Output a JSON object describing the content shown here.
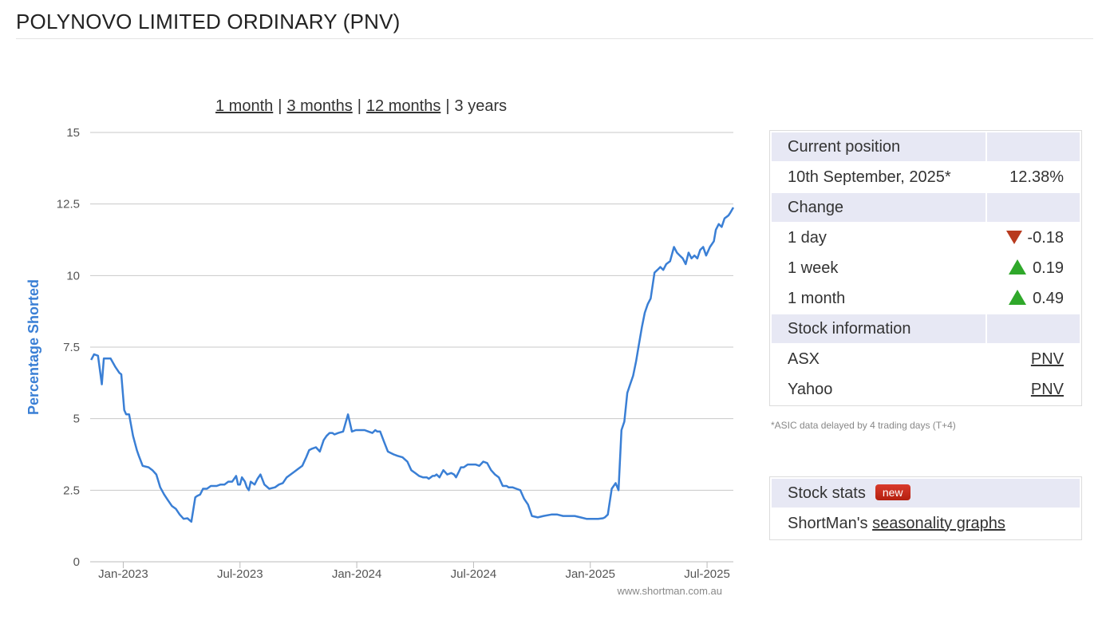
{
  "page": {
    "title": "POLYNOVO LIMITED ORDINARY (PNV)"
  },
  "range_links": [
    {
      "label": "1 month",
      "link": true
    },
    {
      "label": "3 months",
      "link": true
    },
    {
      "label": "12 months",
      "link": true
    },
    {
      "label": "3 years",
      "link": false
    }
  ],
  "colors": {
    "line": "#3a7fd5",
    "grid": "#c8c8c8",
    "axis_label": "#3a7fd5",
    "panel_head": "#e7e8f4",
    "down": "#b83a1e",
    "up": "#2fa82a",
    "badge": "#c62b1e"
  },
  "chart_data": {
    "type": "line",
    "title": "",
    "ylabel": "Percentage Shorted",
    "xlabel": "",
    "ylim": [
      0,
      15
    ],
    "yticks": [
      0,
      2.5,
      5,
      7.5,
      10,
      12.5,
      15
    ],
    "ytick_labels": [
      "0",
      "2.5",
      "5",
      "7.5",
      "10",
      "12.5",
      "15"
    ],
    "xlim": [
      -0.7,
      32.35
    ],
    "xticks": [
      {
        "t": 1,
        "label": "Jan-2023"
      },
      {
        "t": 7,
        "label": "Jul-2023"
      },
      {
        "t": 13,
        "label": "Jan-2024"
      },
      {
        "t": 19,
        "label": "Jul-2024"
      },
      {
        "t": 25,
        "label": "Jan-2025"
      },
      {
        "t": 31,
        "label": "Jul-2025"
      }
    ],
    "credit": "www.shortman.com.au",
    "series": [
      {
        "name": "Percentage Shorted",
        "x": [
          -0.65,
          -0.5,
          -0.3,
          -0.1,
          0.0,
          0.1,
          0.35,
          0.6,
          0.8,
          0.9,
          1.05,
          1.15,
          1.3,
          1.5,
          1.7,
          1.8,
          2.0,
          2.3,
          2.5,
          2.7,
          2.9,
          3.1,
          3.3,
          3.5,
          3.7,
          3.9,
          4.1,
          4.3,
          4.5,
          4.7,
          4.8,
          4.95,
          5.1,
          5.3,
          5.5,
          5.8,
          6.0,
          6.2,
          6.4,
          6.6,
          6.8,
          6.9,
          7.0,
          7.1,
          7.25,
          7.35,
          7.45,
          7.55,
          7.75,
          7.9,
          8.05,
          8.25,
          8.5,
          8.8,
          9.0,
          9.2,
          9.4,
          9.6,
          9.8,
          10.0,
          10.2,
          10.4,
          10.55,
          10.7,
          10.9,
          11.1,
          11.3,
          11.45,
          11.6,
          11.75,
          11.85,
          12.05,
          12.3,
          12.55,
          12.75,
          12.95,
          13.1,
          13.4,
          13.6,
          13.8,
          13.95,
          14.05,
          14.2,
          14.4,
          14.6,
          14.75,
          14.9,
          15.1,
          15.35,
          15.6,
          15.8,
          16.0,
          16.2,
          16.4,
          16.6,
          16.7,
          16.8,
          16.9,
          17.0,
          17.1,
          17.25,
          17.45,
          17.65,
          17.85,
          18.0,
          18.1,
          18.25,
          18.35,
          18.5,
          18.7,
          18.9,
          19.1,
          19.3,
          19.5,
          19.7,
          19.9,
          20.1,
          20.3,
          20.5,
          20.7,
          20.8,
          21.0,
          21.2,
          21.4,
          21.6,
          21.8,
          22.0,
          22.3,
          22.6,
          23.0,
          23.3,
          23.6,
          23.9,
          24.2,
          24.5,
          24.8,
          25.1,
          25.4,
          25.65,
          25.75,
          25.9,
          26.1,
          26.3,
          26.45,
          26.6,
          26.75,
          26.9,
          27.05,
          27.2,
          27.35,
          27.5,
          27.65,
          27.8,
          27.95,
          28.1,
          28.3,
          28.45,
          28.6,
          28.75,
          28.9,
          29.1,
          29.3,
          29.45,
          29.6,
          29.75,
          29.9,
          30.05,
          30.2,
          30.35,
          30.5,
          30.65,
          30.8,
          30.95,
          31.15,
          31.35,
          31.45,
          31.6,
          31.75,
          31.9,
          32.0,
          32.1,
          32.2,
          32.35
        ],
        "values": [
          7.05,
          7.25,
          7.2,
          6.2,
          7.1,
          7.1,
          7.1,
          6.8,
          6.6,
          6.55,
          5.3,
          5.15,
          5.15,
          4.4,
          3.9,
          3.7,
          3.35,
          3.3,
          3.2,
          3.05,
          2.6,
          2.35,
          2.15,
          1.95,
          1.85,
          1.65,
          1.5,
          1.52,
          1.4,
          2.25,
          2.3,
          2.35,
          2.55,
          2.55,
          2.65,
          2.65,
          2.7,
          2.7,
          2.8,
          2.8,
          3.0,
          2.7,
          2.7,
          2.95,
          2.8,
          2.6,
          2.5,
          2.8,
          2.7,
          2.9,
          3.05,
          2.7,
          2.55,
          2.6,
          2.7,
          2.75,
          2.95,
          3.05,
          3.15,
          3.25,
          3.35,
          3.65,
          3.9,
          3.95,
          4.0,
          3.85,
          4.25,
          4.4,
          4.5,
          4.5,
          4.45,
          4.5,
          4.55,
          5.15,
          4.55,
          4.6,
          4.6,
          4.6,
          4.55,
          4.5,
          4.6,
          4.55,
          4.55,
          4.2,
          3.85,
          3.8,
          3.75,
          3.7,
          3.65,
          3.5,
          3.2,
          3.1,
          3.0,
          2.95,
          2.95,
          2.9,
          2.95,
          3.0,
          3.0,
          3.05,
          2.95,
          3.2,
          3.05,
          3.1,
          3.05,
          2.95,
          3.15,
          3.3,
          3.3,
          3.4,
          3.4,
          3.4,
          3.35,
          3.5,
          3.45,
          3.2,
          3.05,
          2.95,
          2.65,
          2.65,
          2.6,
          2.6,
          2.55,
          2.5,
          2.2,
          2.0,
          1.6,
          1.55,
          1.6,
          1.65,
          1.65,
          1.6,
          1.6,
          1.6,
          1.55,
          1.5,
          1.5,
          1.5,
          1.52,
          1.55,
          1.65,
          2.55,
          2.75,
          2.5,
          4.6,
          4.9,
          5.9,
          6.2,
          6.5,
          7.0,
          7.6,
          8.2,
          8.7,
          9.0,
          9.2,
          10.1,
          10.2,
          10.3,
          10.2,
          10.4,
          10.5,
          11.0,
          10.8,
          10.7,
          10.6,
          10.4,
          10.8,
          10.6,
          10.7,
          10.6,
          10.9,
          11.0,
          10.7,
          11.0,
          11.2,
          11.6,
          11.8,
          11.7,
          12.0,
          12.05,
          12.1,
          12.2,
          12.38
        ]
      }
    ]
  },
  "current_position": {
    "header": "Current position",
    "date": "10th September, 2025*",
    "value": "12.38%"
  },
  "change": {
    "header": "Change",
    "rows": [
      {
        "label": "1 day",
        "value": "-0.18",
        "direction": "down"
      },
      {
        "label": "1 week",
        "value": "0.19",
        "direction": "up"
      },
      {
        "label": "1 month",
        "value": "0.49",
        "direction": "up"
      }
    ]
  },
  "stock_information": {
    "header": "Stock information",
    "rows": [
      {
        "label": "ASX",
        "value": "PNV"
      },
      {
        "label": "Yahoo",
        "value": "PNV"
      }
    ]
  },
  "note": "*ASIC data delayed by 4 trading days (T+4)",
  "stock_stats": {
    "header": "Stock stats",
    "badge": "new",
    "text_prefix": "ShortMan's",
    "link": "seasonality graphs"
  }
}
